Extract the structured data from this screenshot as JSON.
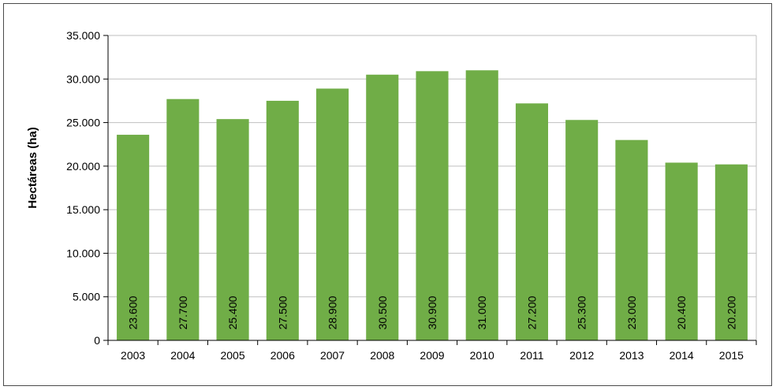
{
  "chart_data": {
    "type": "bar",
    "title": "",
    "xlabel": "",
    "ylabel": "Hectáreas (ha)",
    "ylim": [
      0,
      35000
    ],
    "yticks": [
      0,
      5000,
      10000,
      15000,
      20000,
      25000,
      30000,
      35000
    ],
    "ytick_labels": [
      "0",
      "5.000",
      "10.000",
      "15.000",
      "20.000",
      "25.000",
      "30.000",
      "35.000"
    ],
    "categories": [
      "2003",
      "2004",
      "2005",
      "2006",
      "2007",
      "2008",
      "2009",
      "2010",
      "2011",
      "2012",
      "2013",
      "2014",
      "2015"
    ],
    "values": [
      23600,
      27700,
      25400,
      27500,
      28900,
      30500,
      30900,
      31000,
      27200,
      25300,
      23000,
      20400,
      20200
    ],
    "data_labels": [
      "23.600",
      "27.700",
      "25.400",
      "27.500",
      "28.900",
      "30.500",
      "30.900",
      "31.000",
      "27.200",
      "25.300",
      "23.000",
      "20.400",
      "20.200"
    ],
    "grid": true,
    "legend": false,
    "bar_color": "#70ad47",
    "grid_color": "#bfbfbf"
  }
}
